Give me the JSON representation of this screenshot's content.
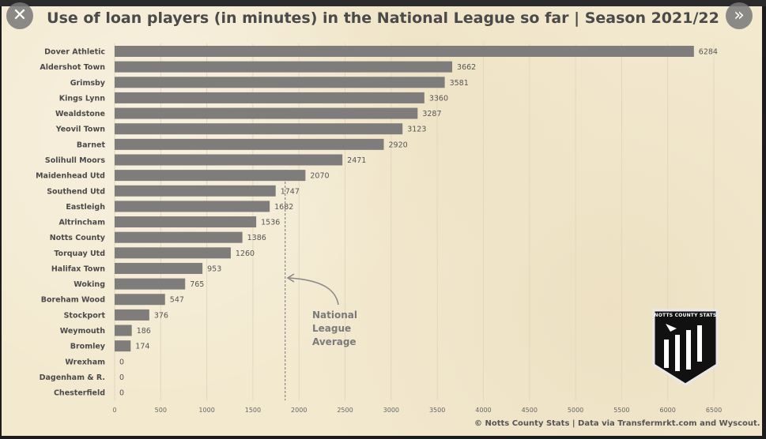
{
  "title": "Use of loan players (in minutes) in the National League so far | Season 2021/22",
  "footer": "© Notts County Stats | Data via Transfermrkt.com and Wyscout.",
  "annotation": {
    "line1": "National League",
    "line2": "Average"
  },
  "logo": {
    "text": "NOTTS COUNTY STATS"
  },
  "controls": {
    "close_icon": "close-icon",
    "next_icon": "double-chevron-right-icon"
  },
  "colors": {
    "bar": "#7f7d7c",
    "background": "#f3e9cf",
    "text": "#4a4a4a"
  },
  "chart_data": {
    "type": "bar",
    "orientation": "horizontal",
    "title": "Use of loan players (in minutes) in the National League so far | Season 2021/22",
    "xlabel": "",
    "ylabel": "",
    "xlim": [
      0,
      6500
    ],
    "x_ticks": [
      0,
      500,
      1000,
      1500,
      2000,
      2500,
      3000,
      3500,
      4000,
      4500,
      5000,
      5500,
      6000,
      6500
    ],
    "grid": true,
    "average_line": {
      "label": "National League Average",
      "value": 1850
    },
    "categories": [
      "Dover Athletic",
      "Aldershot Town",
      "Grimsby",
      "Kings Lynn",
      "Wealdstone",
      "Yeovil Town",
      "Barnet",
      "Solihull Moors",
      "Maidenhead Utd",
      "Southend Utd",
      "Eastleigh",
      "Altrincham",
      "Notts County",
      "Torquay Utd",
      "Halifax Town",
      "Woking",
      "Boreham Wood",
      "Stockport",
      "Weymouth",
      "Bromley",
      "Wrexham",
      "Dagenham & R.",
      "Chesterfield"
    ],
    "values": [
      6284,
      3662,
      3581,
      3360,
      3287,
      3123,
      2920,
      2471,
      2070,
      1747,
      1682,
      1536,
      1386,
      1260,
      953,
      765,
      547,
      376,
      186,
      174,
      0,
      0,
      0
    ]
  }
}
